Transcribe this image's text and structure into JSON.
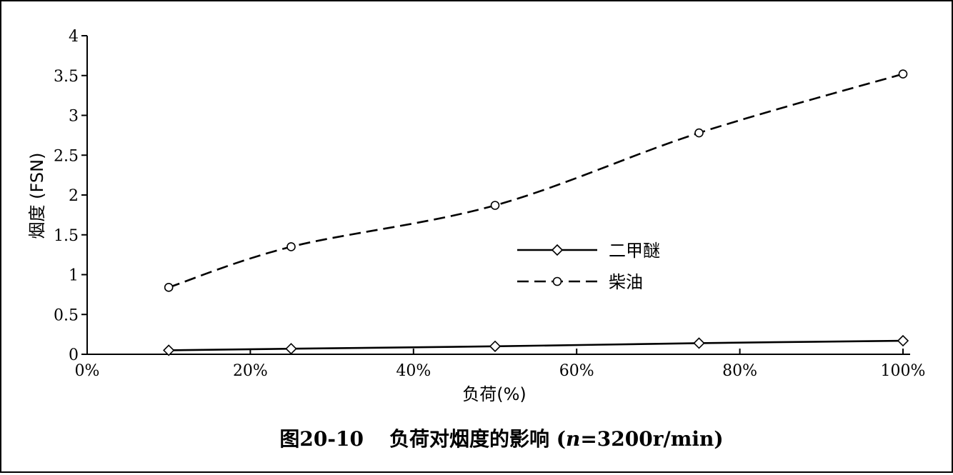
{
  "chart_data": {
    "type": "line",
    "caption_prefix": "图20-10",
    "caption_title": "负荷对烟度的影响 (",
    "caption_var": "n",
    "caption_cond": "=3200r/min)",
    "xlabel": "负荷(%)",
    "ylabel": "烟度 (FSN)",
    "x_ticks": [
      "0%",
      "20%",
      "40%",
      "60%",
      "80%",
      "100%"
    ],
    "x_tick_values": [
      0,
      20,
      40,
      60,
      80,
      100
    ],
    "y_ticks": [
      "0",
      "0.5",
      "1",
      "1.5",
      "2",
      "2.5",
      "3",
      "3.5",
      "4"
    ],
    "y_tick_values": [
      0,
      0.5,
      1,
      1.5,
      2,
      2.5,
      3,
      3.5,
      4
    ],
    "xlim": [
      0,
      100
    ],
    "ylim": [
      0,
      4
    ],
    "grid": false,
    "legend_position": "center-right",
    "x": [
      10,
      25,
      50,
      75,
      100
    ],
    "series": [
      {
        "name": "二甲醚",
        "values": [
          0.05,
          0.07,
          0.1,
          0.14,
          0.17
        ],
        "line_style": "solid",
        "marker": "diamond",
        "color": "#000000"
      },
      {
        "name": "柴油",
        "values": [
          0.84,
          1.35,
          1.87,
          2.78,
          3.52
        ],
        "line_style": "dashed",
        "marker": "circle",
        "color": "#000000"
      }
    ]
  }
}
